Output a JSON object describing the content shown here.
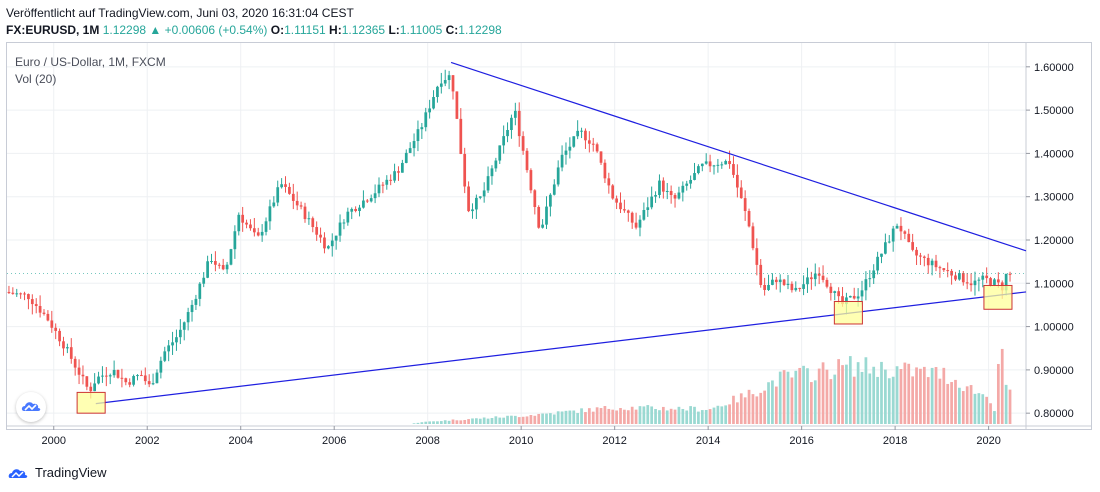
{
  "header": {
    "published": "Veröffentlicht auf TradingView.com, Juni 03, 2020 16:31:04 CEST",
    "symbol": "FX:EURUSD, 1M",
    "last": "1.12298",
    "change_arrow": "▲",
    "change": "+0.00606 (+0.54%)",
    "o_label": "O:",
    "o_value": "1.11151",
    "h_label": "H:",
    "h_value": "1.12365",
    "l_label": "L:",
    "l_value": "1.11005",
    "c_label": "C:",
    "c_value": "1.12298"
  },
  "legend": {
    "title": "Euro / US-Dollar, 1M, FXCM",
    "volume": "Vol (20)"
  },
  "footer": {
    "brand": "TradingView",
    "logo_icon": "tradingview-logo-icon"
  },
  "colors": {
    "up": "#26a69a",
    "down": "#ef5350",
    "trendline": "#1f1fe0",
    "highlight_fill": "#ffff99",
    "highlight_stroke": "#cc3333"
  },
  "chart_data": {
    "type": "candlestick",
    "title": "Euro / US-Dollar, 1M, FXCM",
    "x_range": [
      1999.0,
      2020.8
    ],
    "y_range": [
      0.775,
      1.655
    ],
    "x_ticks": [
      {
        "value": 2000,
        "label": "2000"
      },
      {
        "value": 2002,
        "label": "2002"
      },
      {
        "value": 2004,
        "label": "2004"
      },
      {
        "value": 2006,
        "label": "2006"
      },
      {
        "value": 2008,
        "label": "2008"
      },
      {
        "value": 2010,
        "label": "2010"
      },
      {
        "value": 2012,
        "label": "2012"
      },
      {
        "value": 2014,
        "label": "2014"
      },
      {
        "value": 2016,
        "label": "2016"
      },
      {
        "value": 2018,
        "label": "2018"
      },
      {
        "value": 2020,
        "label": "2020"
      }
    ],
    "y_ticks": [
      {
        "value": 0.8,
        "label": "0.80000"
      },
      {
        "value": 0.9,
        "label": "0.90000"
      },
      {
        "value": 1.0,
        "label": "1.00000"
      },
      {
        "value": 1.1,
        "label": "1.10000"
      },
      {
        "value": 1.2,
        "label": "1.20000"
      },
      {
        "value": 1.3,
        "label": "1.30000"
      },
      {
        "value": 1.4,
        "label": "1.40000"
      },
      {
        "value": 1.5,
        "label": "1.50000"
      },
      {
        "value": 1.6,
        "label": "1.60000"
      }
    ],
    "last_value_label": "1.12298",
    "price_anchors": [
      [
        1999.0,
        1.08
      ],
      [
        1999.5,
        1.07
      ],
      [
        1999.9,
        1.02
      ],
      [
        2000.3,
        0.95
      ],
      [
        2000.8,
        0.85
      ],
      [
        2000.95,
        0.88
      ],
      [
        2001.3,
        0.9
      ],
      [
        2001.6,
        0.87
      ],
      [
        2001.9,
        0.89
      ],
      [
        2002.1,
        0.86
      ],
      [
        2002.4,
        0.94
      ],
      [
        2002.7,
        0.98
      ],
      [
        2003.0,
        1.05
      ],
      [
        2003.4,
        1.16
      ],
      [
        2003.7,
        1.12
      ],
      [
        2004.0,
        1.26
      ],
      [
        2004.4,
        1.2
      ],
      [
        2004.9,
        1.33
      ],
      [
        2005.4,
        1.26
      ],
      [
        2005.9,
        1.18
      ],
      [
        2006.3,
        1.26
      ],
      [
        2006.9,
        1.31
      ],
      [
        2007.4,
        1.36
      ],
      [
        2007.9,
        1.46
      ],
      [
        2008.3,
        1.57
      ],
      [
        2008.55,
        1.58
      ],
      [
        2008.9,
        1.27
      ],
      [
        2009.2,
        1.3
      ],
      [
        2009.9,
        1.5
      ],
      [
        2010.45,
        1.22
      ],
      [
        2010.9,
        1.39
      ],
      [
        2011.3,
        1.45
      ],
      [
        2011.6,
        1.42
      ],
      [
        2012.0,
        1.3
      ],
      [
        2012.5,
        1.23
      ],
      [
        2013.0,
        1.33
      ],
      [
        2013.3,
        1.29
      ],
      [
        2013.9,
        1.37
      ],
      [
        2014.3,
        1.38
      ],
      [
        2014.5,
        1.38
      ],
      [
        2014.9,
        1.24
      ],
      [
        2015.2,
        1.08
      ],
      [
        2015.5,
        1.11
      ],
      [
        2015.9,
        1.08
      ],
      [
        2016.4,
        1.13
      ],
      [
        2016.9,
        1.05
      ],
      [
        2017.3,
        1.08
      ],
      [
        2017.9,
        1.2
      ],
      [
        2018.1,
        1.24
      ],
      [
        2018.4,
        1.17
      ],
      [
        2018.9,
        1.14
      ],
      [
        2019.3,
        1.12
      ],
      [
        2019.7,
        1.1
      ],
      [
        2019.95,
        1.11
      ],
      [
        2020.2,
        1.1
      ],
      [
        2020.35,
        1.09
      ],
      [
        2020.42,
        1.12
      ]
    ],
    "volume_anchors": [
      [
        1999.0,
        0.0
      ],
      [
        2007.5,
        0.0
      ],
      [
        2008.0,
        0.03
      ],
      [
        2010.0,
        0.1
      ],
      [
        2012.0,
        0.2
      ],
      [
        2014.0,
        0.18
      ],
      [
        2014.8,
        0.35
      ],
      [
        2015.5,
        0.55
      ],
      [
        2016.0,
        0.6
      ],
      [
        2017.0,
        0.7
      ],
      [
        2018.0,
        0.65
      ],
      [
        2019.0,
        0.6
      ],
      [
        2020.0,
        0.3
      ],
      [
        2020.1,
        0.15
      ],
      [
        2020.2,
        1.0
      ],
      [
        2020.3,
        0.55
      ],
      [
        2020.42,
        0.35
      ]
    ],
    "trendlines": [
      {
        "from": [
          2008.5,
          1.61
        ],
        "to": [
          2020.8,
          1.175
        ]
      },
      {
        "from": [
          2000.9,
          0.822
        ],
        "to": [
          2020.8,
          1.08
        ]
      }
    ],
    "highlights": [
      {
        "x": [
          2000.5,
          2001.1
        ],
        "y": [
          0.8,
          0.848
        ]
      },
      {
        "x": [
          2016.7,
          2017.3
        ],
        "y": [
          1.006,
          1.058
        ]
      },
      {
        "x": [
          2019.9,
          2020.5
        ],
        "y": [
          1.04,
          1.095
        ]
      }
    ]
  }
}
